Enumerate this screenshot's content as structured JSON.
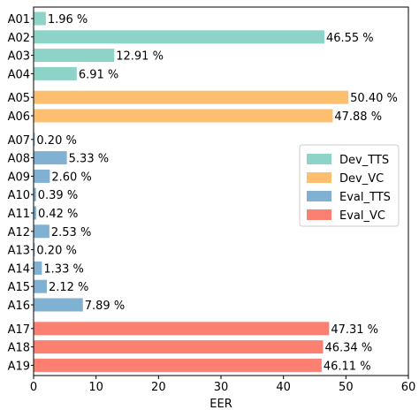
{
  "chart_data": {
    "type": "bar",
    "orientation": "horizontal",
    "xlabel": "EER",
    "xlim": [
      0,
      60
    ],
    "xticks": [
      "0",
      "10",
      "20",
      "30",
      "40",
      "50",
      "60"
    ],
    "grid": false,
    "legend_position": "center-right",
    "series": [
      {
        "name": "Dev_TTS",
        "color": "#8dd3c7",
        "categories": [
          "A01",
          "A02",
          "A03",
          "A04"
        ],
        "values": [
          1.96,
          46.55,
          12.91,
          6.91
        ],
        "labels": [
          "1.96 %",
          "46.55 %",
          "12.91 %",
          "6.91 %"
        ]
      },
      {
        "name": "Dev_VC",
        "color": "#fdbf6f",
        "categories": [
          "A05",
          "A06"
        ],
        "values": [
          50.4,
          47.88
        ],
        "labels": [
          "50.40 %",
          "47.88 %"
        ]
      },
      {
        "name": "Eval_TTS",
        "color": "#80b1d3",
        "categories": [
          "A07",
          "A08",
          "A09",
          "A10",
          "A11",
          "A12",
          "A13",
          "A14",
          "A15",
          "A16"
        ],
        "values": [
          0.2,
          5.33,
          2.6,
          0.39,
          0.42,
          2.53,
          0.2,
          1.33,
          2.12,
          7.89
        ],
        "labels": [
          "0.20 %",
          "5.33 %",
          "2.60 %",
          "0.39 %",
          "0.42 %",
          "2.53 %",
          "0.20 %",
          "1.33 %",
          "2.12 %",
          "7.89 %"
        ]
      },
      {
        "name": "Eval_VC",
        "color": "#fb8072",
        "categories": [
          "A17",
          "A18",
          "A19"
        ],
        "values": [
          47.31,
          46.34,
          46.11
        ],
        "labels": [
          "47.31 %",
          "46.34 %",
          "46.11 %"
        ]
      }
    ]
  }
}
